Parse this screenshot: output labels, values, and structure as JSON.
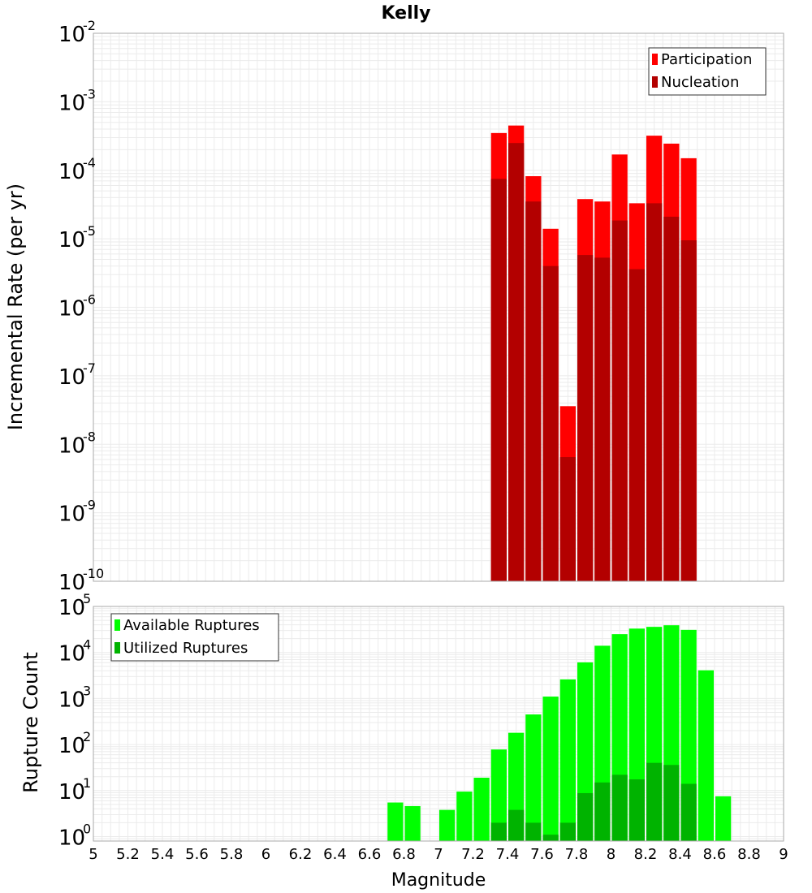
{
  "chart_data": [
    {
      "type": "bar",
      "panel": "top",
      "title": "Kelly",
      "xlabel": "Magnitude",
      "ylabel": "Incremental Rate (per yr)",
      "xlim": [
        5,
        9
      ],
      "ylim": [
        1e-10,
        0.01
      ],
      "yscale": "log",
      "legend_position": "top-right",
      "bar_width": 0.1,
      "series": [
        {
          "name": "Participation",
          "color": "#ff0000",
          "x": [
            7.35,
            7.45,
            7.55,
            7.65,
            7.75,
            7.85,
            7.95,
            8.05,
            8.15,
            8.25,
            8.35,
            8.45
          ],
          "values": [
            0.00035,
            0.00045,
            8.2e-05,
            1.4e-05,
            3.6e-08,
            3.8e-05,
            3.5e-05,
            0.00017,
            3.3e-05,
            0.00032,
            0.000245,
            0.00015
          ]
        },
        {
          "name": "Nucleation",
          "color": "#b30000",
          "x": [
            7.35,
            7.45,
            7.55,
            7.65,
            7.75,
            7.85,
            7.95,
            8.05,
            8.15,
            8.25,
            8.35,
            8.45
          ],
          "values": [
            7.5e-05,
            0.00025,
            3.5e-05,
            4e-06,
            6.5e-09,
            5.8e-06,
            5.3e-06,
            1.85e-05,
            3.6e-06,
            3.3e-05,
            2.1e-05,
            9.5e-06
          ]
        }
      ]
    },
    {
      "type": "bar",
      "panel": "bottom",
      "xlabel": "Magnitude",
      "ylabel": "Rupture Count",
      "xlim": [
        5,
        9
      ],
      "ylim": [
        0.8,
        100000
      ],
      "yscale": "log",
      "legend_position": "top-left",
      "bar_width": 0.1,
      "series": [
        {
          "name": "Available Ruptures",
          "color": "#00ff00",
          "x": [
            6.75,
            6.85,
            7.05,
            7.15,
            7.25,
            7.35,
            7.45,
            7.55,
            7.65,
            7.75,
            7.85,
            7.95,
            8.05,
            8.15,
            8.25,
            8.35,
            8.45,
            8.55,
            8.65
          ],
          "values": [
            5.5,
            4.6,
            3.8,
            9.5,
            19,
            78,
            180,
            450,
            1100,
            2600,
            6100,
            14000,
            25000,
            33000,
            36000,
            39000,
            31000,
            4100,
            7.5
          ]
        },
        {
          "name": "Utilized Ruptures",
          "color": "#00b300",
          "x": [
            7.35,
            7.45,
            7.55,
            7.65,
            7.75,
            7.85,
            7.95,
            8.05,
            8.15,
            8.25,
            8.35,
            8.45
          ],
          "values": [
            2,
            3.8,
            2,
            1.1,
            2,
            8.8,
            15,
            22,
            17.5,
            40,
            36,
            14
          ]
        }
      ]
    }
  ],
  "axis": {
    "x_ticks": [
      "5",
      "5.2",
      "5.4",
      "5.6",
      "5.8",
      "6",
      "6.2",
      "6.4",
      "6.6",
      "6.8",
      "7",
      "7.2",
      "7.4",
      "7.6",
      "7.8",
      "8",
      "8.2",
      "8.4",
      "8.6",
      "8.8",
      "9"
    ],
    "top_y_exponents": [
      "-10",
      "-9",
      "-8",
      "-7",
      "-6",
      "-5",
      "-4",
      "-3",
      "-2"
    ],
    "bottom_y_exponents": [
      "0",
      "1",
      "2",
      "3",
      "4",
      "5"
    ],
    "y_tick_base": "10"
  },
  "colors": {
    "grid": "#ebebeb",
    "axis_border": "#aaaaaa",
    "bar_separator": "#ffffff"
  }
}
